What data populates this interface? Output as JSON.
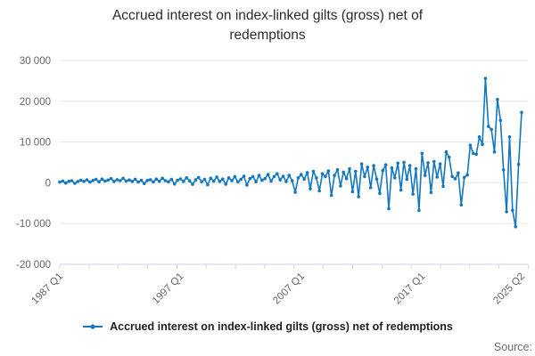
{
  "title": "Accrued interest on index-linked gilts (gross) net of redemptions",
  "legend": {
    "label": "Accrued interest on index-linked gilts (gross) net of redemptions"
  },
  "source_label": "Source:",
  "colors": {
    "series": "#1478be",
    "grid": "#e6e6e6",
    "axis": "#ccd6eb",
    "tick_text": "#666666",
    "title_text": "#2b2b2b"
  },
  "chart_data": {
    "type": "line",
    "title": "Accrued interest on index-linked gilts (gross) net of redemptions",
    "xlabel": "",
    "ylabel": "",
    "x_start": "1987 Q1",
    "x_end": "2025 Q2",
    "x_unit": "quarter",
    "grid": true,
    "legend_position": "bottom",
    "ylim": [
      -20000,
      30000
    ],
    "y_ticks": [
      {
        "value": 30000,
        "label": "30 000"
      },
      {
        "value": 20000,
        "label": "20 000"
      },
      {
        "value": 10000,
        "label": "10 000"
      },
      {
        "value": 0,
        "label": "0"
      },
      {
        "value": -10000,
        "label": "-10 000"
      },
      {
        "value": -20000,
        "label": "-20 000"
      }
    ],
    "x_tick_labels": [
      {
        "label": "1987 Q1",
        "index": 0
      },
      {
        "label": "1997 Q1",
        "index": 40
      },
      {
        "label": "2007 Q1",
        "index": 80
      },
      {
        "label": "2017 Q1",
        "index": 120
      },
      {
        "label": "2025 Q2",
        "index": 153
      }
    ],
    "values": [
      150,
      420,
      -80,
      350,
      500,
      -150,
      300,
      620,
      320,
      700,
      150,
      550,
      800,
      250,
      900,
      400,
      650,
      1000,
      300,
      750,
      500,
      1100,
      420,
      680,
      300,
      850,
      150,
      600,
      -200,
      550,
      750,
      200,
      900,
      350,
      1100,
      500,
      250,
      800,
      -300,
      600,
      950,
      300,
      1200,
      450,
      -400,
      700,
      1300,
      250,
      800,
      -500,
      1100,
      400,
      1400,
      300,
      900,
      -350,
      1200,
      500,
      1500,
      200,
      800,
      1600,
      -600,
      1000,
      1500,
      250,
      1800,
      600,
      1000,
      2000,
      400,
      1500,
      2200,
      700,
      1600,
      300,
      1800,
      500,
      -2350,
      1200,
      2000,
      900,
      2500,
      -1500,
      2800,
      1200,
      -2000,
      2200,
      1500,
      2900,
      -3100,
      1800,
      3200,
      -800,
      2600,
      1000,
      3400,
      -2200,
      2800,
      -3450,
      4600,
      1500,
      3800,
      -1200,
      4200,
      900,
      -2600,
      3000,
      4400,
      -6400,
      3600,
      1200,
      4800,
      -1800,
      5000,
      800,
      4200,
      -2800,
      3400,
      -6800,
      7200,
      1800,
      4900,
      -2400,
      5200,
      1400,
      4600,
      -900,
      7570,
      6240,
      1540,
      950,
      2400,
      -5450,
      1320,
      1900,
      9200,
      7210,
      7000,
      11250,
      9420,
      25600,
      13820,
      13080,
      7570,
      20450,
      15290,
      3150,
      -7120,
      11250,
      -6770,
      -10800,
      4500,
      17270
    ]
  }
}
